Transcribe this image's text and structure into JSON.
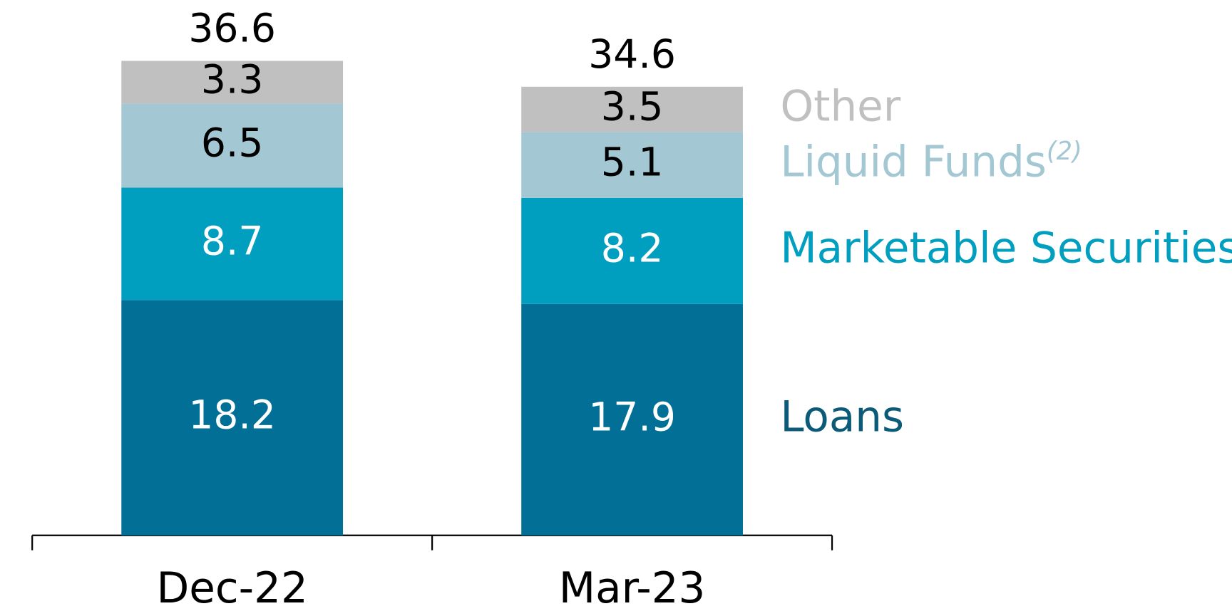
{
  "chart_data": {
    "type": "stacked_bar",
    "categories": [
      "Dec-22",
      "Mar-23"
    ],
    "series": [
      {
        "name": "Loans",
        "color": "#026f96",
        "legend_color": "#0b5a78",
        "label_color": "#ffffff",
        "values": [
          18.2,
          17.9
        ]
      },
      {
        "name": "Marketable Securities",
        "color": "#009fc0",
        "legend_color": "#009fc0",
        "label_color": "#ffffff",
        "values": [
          8.7,
          8.2
        ]
      },
      {
        "name": "Liquid Funds",
        "note": "(2)",
        "color": "#a3c7d3",
        "legend_color": "#a3c7d3",
        "label_color": "#000000",
        "values": [
          6.5,
          5.1
        ]
      },
      {
        "name": "Other",
        "color": "#c0c0c0",
        "legend_color": "#c0c0c0",
        "label_color": "#000000",
        "values": [
          3.3,
          3.5
        ]
      }
    ],
    "totals": [
      36.6,
      34.6
    ],
    "ylim": [
      0,
      41.4
    ],
    "legend": "right"
  }
}
